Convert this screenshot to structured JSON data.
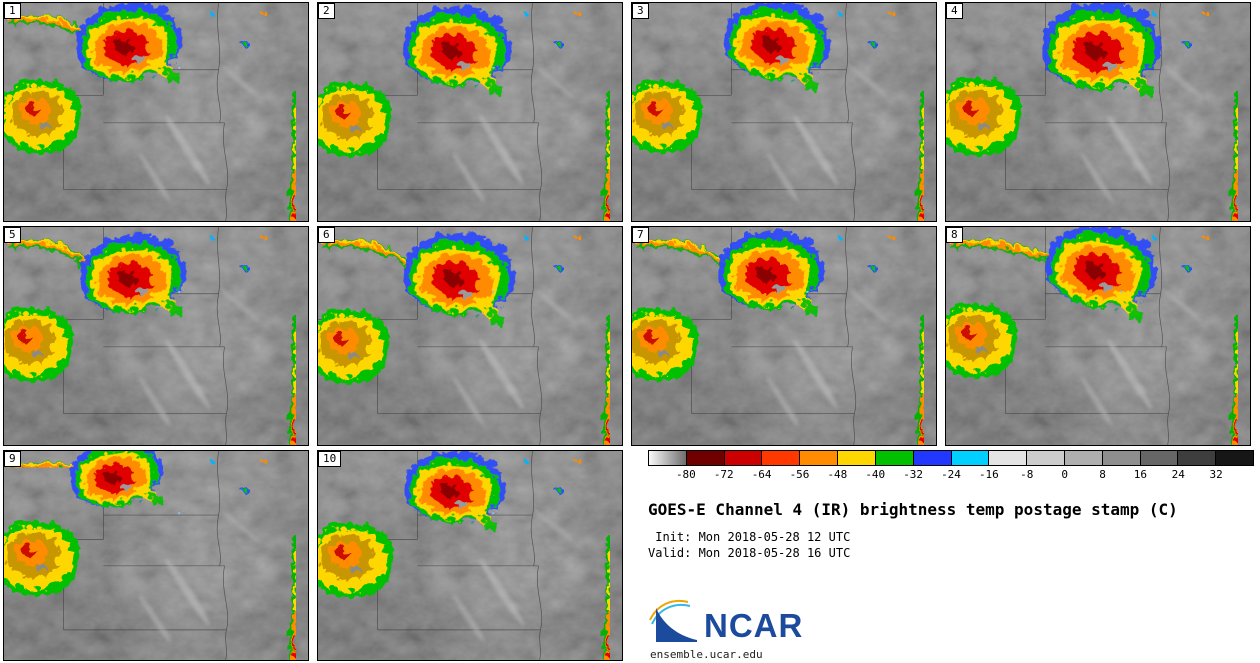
{
  "panels": [
    {
      "label": "1",
      "storm": [
        122,
        42,
        1.0,
        -6
      ],
      "west": [
        34,
        112,
        1.0
      ],
      "front": true
    },
    {
      "label": "2",
      "storm": [
        136,
        46,
        1.02,
        4
      ],
      "west": [
        30,
        115,
        1.0
      ],
      "front": false
    },
    {
      "label": "3",
      "storm": [
        142,
        40,
        1.0,
        8
      ],
      "west": [
        28,
        112,
        0.98
      ],
      "front": false
    },
    {
      "label": "4",
      "storm": [
        152,
        46,
        1.12,
        0
      ],
      "west": [
        30,
        112,
        1.05
      ],
      "front": false
    },
    {
      "label": "5",
      "storm": [
        126,
        50,
        1.0,
        -4
      ],
      "west": [
        26,
        116,
        1.0
      ],
      "front": true
    },
    {
      "label": "6",
      "storm": [
        138,
        50,
        1.05,
        6
      ],
      "west": [
        28,
        118,
        1.0
      ],
      "front": true
    },
    {
      "label": "7",
      "storm": [
        136,
        46,
        1.0,
        0
      ],
      "west": [
        24,
        116,
        0.98
      ],
      "front": true
    },
    {
      "label": "8",
      "storm": [
        152,
        42,
        1.05,
        10
      ],
      "west": [
        28,
        112,
        1.0
      ],
      "front": true
    },
    {
      "label": "9",
      "storm": [
        110,
        26,
        0.88,
        -10
      ],
      "west": [
        30,
        110,
        1.05
      ],
      "front": true
    },
    {
      "label": "10",
      "storm": [
        134,
        40,
        0.95,
        4
      ],
      "west": [
        30,
        112,
        1.05
      ],
      "front": false
    }
  ],
  "colorbar": {
    "ticks": [
      "-80",
      "-72",
      "-64",
      "-56",
      "-48",
      "-40",
      "-32",
      "-24",
      "-16",
      "-8",
      "0",
      "8",
      "16",
      "24",
      "32"
    ],
    "colors": [
      "linear-gradient(to right,#fafafa,#6e6e6e)",
      "#700000",
      "#cc0000",
      "#ff3800",
      "#ff8c00",
      "#ffd700",
      "#00c000",
      "#2038ff",
      "#00d0ff",
      "#e4e4e4",
      "#cccccc",
      "#afafaf",
      "#8e8e8e",
      "#666666",
      "#3e3e3e",
      "#161616"
    ]
  },
  "info": {
    "title": "GOES-E Channel 4 (IR) brightness temp postage stamp (C)",
    "init_line": " Init: Mon 2018-05-28 12 UTC",
    "valid_line": "Valid: Mon 2018-05-28 16 UTC"
  },
  "footer": {
    "logo_text": "NCAR",
    "url": "ensemble.ucar.edu"
  }
}
